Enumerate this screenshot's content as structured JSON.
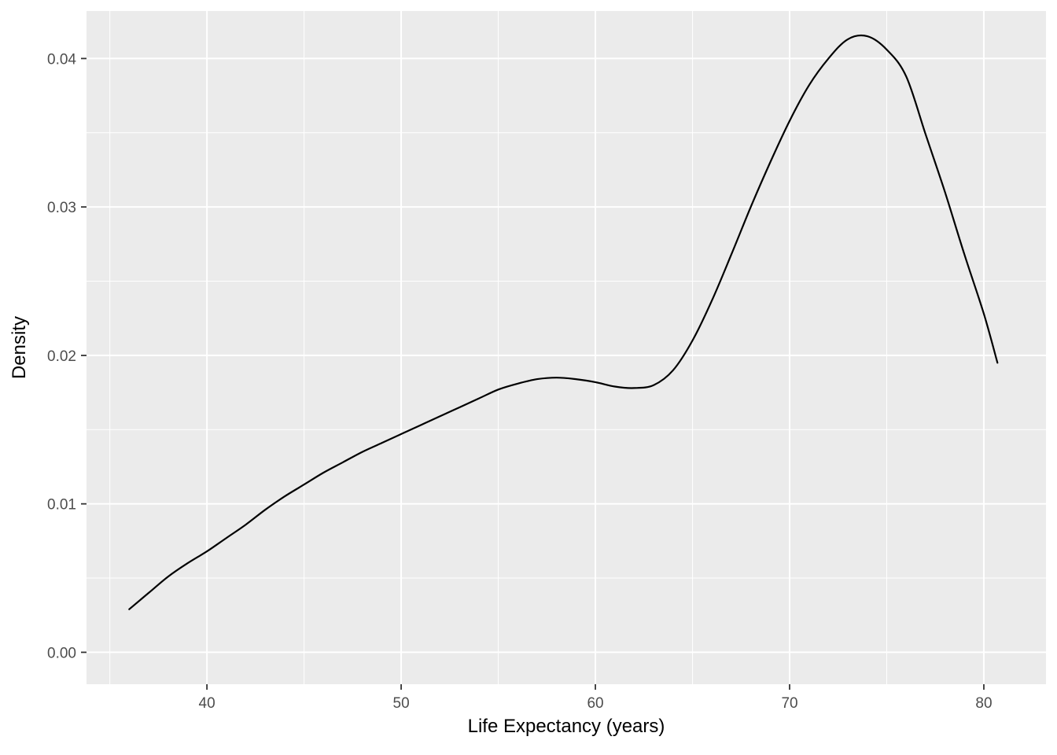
{
  "chart_data": {
    "type": "line",
    "subtype": "density-curve",
    "title": "",
    "xlabel": "Life Expectancy (years)",
    "ylabel": "Density",
    "xlim": [
      33.8,
      83.2
    ],
    "ylim": [
      -0.00215,
      0.0432
    ],
    "x_ticks": [
      40,
      50,
      60,
      70,
      80
    ],
    "x_tick_labels": [
      "40",
      "50",
      "60",
      "70",
      "80"
    ],
    "x_minor_ticks": [
      35,
      45,
      55,
      65,
      75
    ],
    "y_ticks": [
      0,
      0.01,
      0.02,
      0.03,
      0.04
    ],
    "y_tick_labels": [
      "0.00",
      "0.01",
      "0.02",
      "0.03",
      "0.04"
    ],
    "y_minor_ticks": [
      0.005,
      0.015,
      0.025,
      0.035
    ],
    "grid": true,
    "legend": "none",
    "panel_bg": "#EBEBEB",
    "grid_color": "#FFFFFF",
    "line_color": "#000000",
    "tick_mark_color": "#333333",
    "tick_label_color": "#4D4D4D",
    "axis_title_color": "#000000",
    "series": [
      {
        "name": "density",
        "x": [
          36,
          37,
          38,
          39,
          40,
          41,
          42,
          43,
          44,
          45,
          46,
          47,
          48,
          49,
          50,
          51,
          52,
          53,
          54,
          55,
          56,
          57,
          58,
          59,
          60,
          61,
          62,
          63,
          64,
          65,
          66,
          67,
          68,
          69,
          70,
          71,
          72,
          73,
          74,
          75,
          76,
          77,
          78,
          79,
          80,
          80.7
        ],
        "y": [
          0.0029,
          0.004,
          0.0051,
          0.006,
          0.0068,
          0.0077,
          0.0086,
          0.0096,
          0.0105,
          0.0113,
          0.0121,
          0.0128,
          0.0135,
          0.0141,
          0.0147,
          0.0153,
          0.0159,
          0.0165,
          0.0171,
          0.0177,
          0.0181,
          0.0184,
          0.0185,
          0.0184,
          0.0182,
          0.0179,
          0.0178,
          0.018,
          0.019,
          0.021,
          0.0237,
          0.0268,
          0.03,
          0.033,
          0.0358,
          0.0382,
          0.04,
          0.0413,
          0.0415,
          0.0406,
          0.0388,
          0.0349,
          0.031,
          0.0268,
          0.0228,
          0.0195
        ]
      }
    ]
  }
}
